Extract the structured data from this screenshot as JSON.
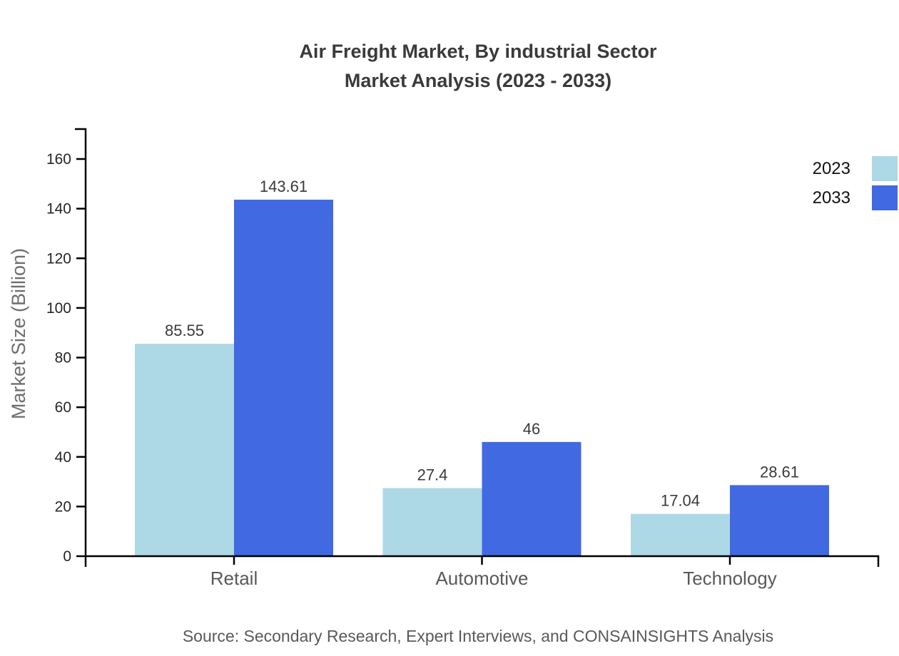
{
  "title": {
    "line1": "Air Freight Market, By industrial Sector",
    "line2": "Market Analysis (2023 - 2033)"
  },
  "source_text": "Source: Secondary Research, Expert Interviews, and CONSAINSIGHTS Analysis",
  "chart_data": {
    "type": "bar",
    "title": "Air Freight Market, By industrial Sector Market Analysis (2023 - 2033)",
    "categories": [
      "Retail",
      "Automotive",
      "Technology"
    ],
    "series": [
      {
        "name": "2023",
        "color": "#ADD8E6",
        "values": [
          85.55,
          27.4,
          17.04
        ]
      },
      {
        "name": "2033",
        "color": "#4169E1",
        "values": [
          143.61,
          46,
          28.61
        ]
      }
    ],
    "value_labels": [
      [
        "85.55",
        "27.4",
        "17.04"
      ],
      [
        "143.61",
        "46",
        "28.61"
      ]
    ],
    "xlabel": "",
    "ylabel": "Market Size (Billion)",
    "yticks": [
      0,
      20,
      40,
      60,
      80,
      100,
      120,
      140,
      160
    ],
    "ylim": [
      0,
      172
    ],
    "grid": false,
    "legend_position": "top-right",
    "axis_color": "#000000",
    "tick_label_color": "#262626",
    "category_label_color": "#595959",
    "value_label_color": "#3a3a3a",
    "background": "#ffffff"
  }
}
